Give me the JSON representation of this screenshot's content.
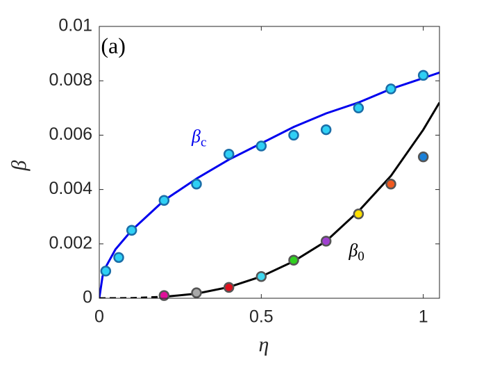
{
  "chart_data": {
    "type": "line",
    "xlabel": "η",
    "ylabel": "β",
    "xlim": [
      0,
      1.05
    ],
    "ylim": [
      0,
      0.01
    ],
    "xticks": [
      0,
      0.5,
      1
    ],
    "yticks": [
      0,
      0.002,
      0.004,
      0.006,
      0.008,
      0.01
    ],
    "grid": false,
    "series": [
      {
        "mode": "line",
        "color": "#0000ee",
        "dash": false,
        "x": [
          0,
          0.01,
          0.02,
          0.05,
          0.1,
          0.2,
          0.3,
          0.4,
          0.5,
          0.6,
          0.7,
          0.8,
          0.9,
          1.0,
          1.05
        ],
        "values": [
          0,
          0.0008,
          0.00115,
          0.0018,
          0.0025,
          0.0036,
          0.0044,
          0.0051,
          0.0057,
          0.0063,
          0.0068,
          0.0072,
          0.0077,
          0.0081,
          0.0083
        ]
      },
      {
        "mode": "line",
        "color": "#000000",
        "dash": true,
        "x": [
          0,
          0.1,
          0.2
        ],
        "values": [
          0,
          6.7e-06,
          5.3e-05
        ]
      },
      {
        "mode": "line",
        "color": "#000000",
        "dash": false,
        "x": [
          0.2,
          0.3,
          0.4,
          0.5,
          0.6,
          0.7,
          0.8,
          0.9,
          1.0,
          1.05
        ],
        "values": [
          5.3e-05,
          0.00017,
          0.00041,
          0.0008,
          0.00136,
          0.0021,
          0.0032,
          0.0045,
          0.0062,
          0.0072
        ]
      },
      {
        "mode": "scatter",
        "color": "#2fd0f5",
        "edge": "#1a6ea8",
        "x": [
          0.02,
          0.06,
          0.1,
          0.2,
          0.3,
          0.4,
          0.5,
          0.6,
          0.7,
          0.8,
          0.9,
          1.0
        ],
        "values": [
          0.001,
          0.0015,
          0.0025,
          0.0036,
          0.0042,
          0.0053,
          0.0056,
          0.006,
          0.0062,
          0.007,
          0.0077,
          0.0082
        ]
      },
      {
        "mode": "scatter",
        "edge": "#555555",
        "colors": [
          "#e0109a",
          "#a8a8a8",
          "#e0101e",
          "#40d8f0",
          "#30d020",
          "#a040d0",
          "#ffe000",
          "#f05a20",
          "#1a80d8"
        ],
        "x": [
          0.2,
          0.3,
          0.4,
          0.5,
          0.6,
          0.7,
          0.8,
          0.9,
          1.0
        ],
        "values": [
          0.0001,
          0.0002,
          0.0004,
          0.0008,
          0.0014,
          0.0021,
          0.0031,
          0.0042,
          0.0052
        ]
      }
    ],
    "annotations": [
      {
        "text": "(a)",
        "x": 0.005,
        "y": 0.0092,
        "color": "#000000"
      },
      {
        "text": "β",
        "sub": "c",
        "x": 0.285,
        "y": 0.0059,
        "color": "#0000ee"
      },
      {
        "text": "β",
        "sub": "0",
        "x": 0.77,
        "y": 0.0017,
        "color": "#000000"
      }
    ]
  }
}
